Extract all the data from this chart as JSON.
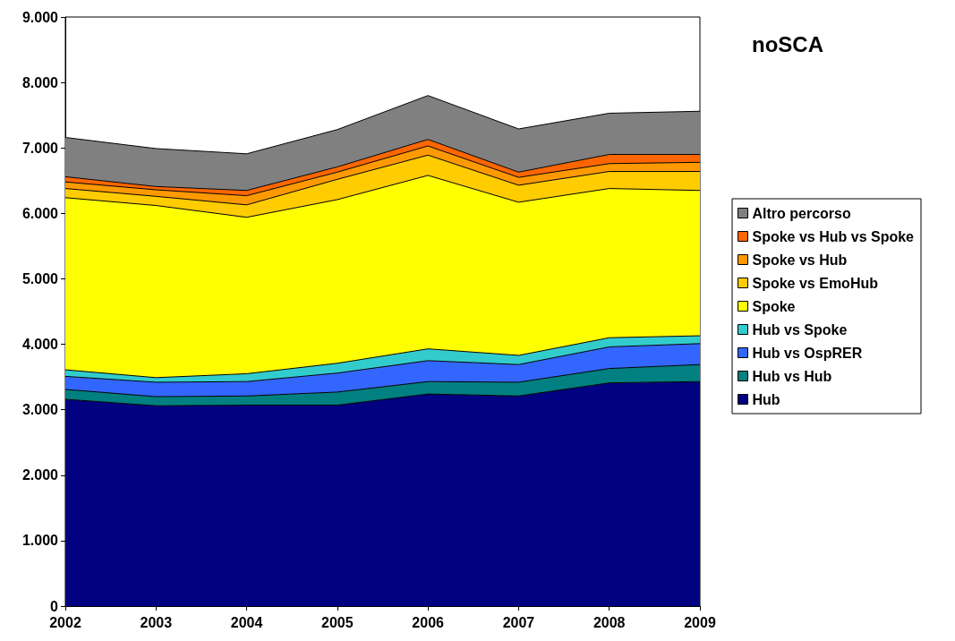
{
  "chart_data": {
    "type": "area",
    "title": "noSCA",
    "stacked": true,
    "categories": [
      "2002",
      "2003",
      "2004",
      "2005",
      "2006",
      "2007",
      "2008",
      "2009"
    ],
    "series": [
      {
        "name": "Hub",
        "color": "#000080",
        "values": [
          3160,
          3060,
          3070,
          3070,
          3240,
          3210,
          3410,
          3430
        ]
      },
      {
        "name": "Hub vs Hub",
        "color": "#008080",
        "values": [
          150,
          140,
          140,
          200,
          190,
          210,
          220,
          260
        ]
      },
      {
        "name": "Hub vs OspRER",
        "color": "#3366ff",
        "values": [
          200,
          220,
          220,
          290,
          320,
          270,
          330,
          320
        ]
      },
      {
        "name": "Hub vs Spoke",
        "color": "#33cccc",
        "values": [
          100,
          70,
          120,
          150,
          180,
          140,
          140,
          120
        ]
      },
      {
        "name": "Spoke",
        "color": "#ffff00",
        "values": [
          2630,
          2630,
          2390,
          2500,
          2650,
          2340,
          2280,
          2220
        ]
      },
      {
        "name": "Spoke vs EmoHub",
        "color": "#ffcc00",
        "values": [
          140,
          140,
          190,
          310,
          310,
          260,
          260,
          290
        ]
      },
      {
        "name": "Spoke vs Hub",
        "color": "#ff9900",
        "values": [
          100,
          100,
          140,
          110,
          140,
          120,
          120,
          140
        ]
      },
      {
        "name": "Spoke vs Hub vs Spoke",
        "color": "#ff6600",
        "values": [
          80,
          50,
          80,
          80,
          100,
          80,
          140,
          120
        ]
      },
      {
        "name": "Altro percorso",
        "color": "#808080",
        "values": [
          600,
          580,
          560,
          570,
          670,
          660,
          630,
          660
        ]
      }
    ],
    "ylim": [
      0,
      9000
    ],
    "yticks": [
      {
        "value": 0,
        "label": "0"
      },
      {
        "value": 1000,
        "label": "1.000"
      },
      {
        "value": 2000,
        "label": "2.000"
      },
      {
        "value": 3000,
        "label": "3.000"
      },
      {
        "value": 4000,
        "label": "4.000"
      },
      {
        "value": 5000,
        "label": "5.000"
      },
      {
        "value": 6000,
        "label": "6.000"
      },
      {
        "value": 7000,
        "label": "7.000"
      },
      {
        "value": 8000,
        "label": "8.000"
      },
      {
        "value": 9000,
        "label": "9.000"
      }
    ],
    "grid": false,
    "legend": "right"
  }
}
